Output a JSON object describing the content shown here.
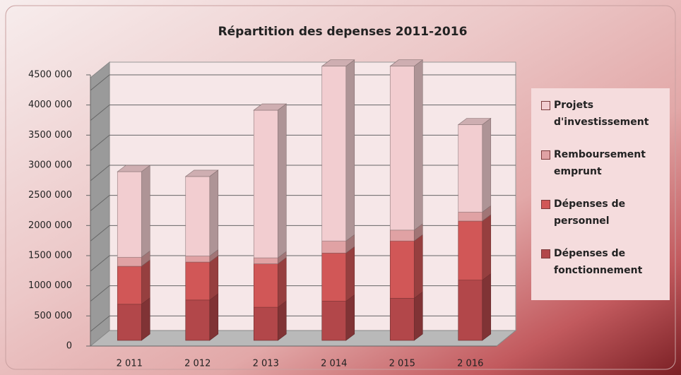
{
  "chart_data": {
    "type": "bar",
    "stacked": true,
    "title": "Répartition des depenses 2011-2016",
    "categories": [
      "2 011",
      "2 012",
      "2 013",
      "2 014",
      "2 015",
      "2 016"
    ],
    "series": [
      {
        "name": "Dépenses de fonctionnement",
        "color": "#b2474a",
        "values": [
          600000,
          670000,
          550000,
          650000,
          700000,
          1000000
        ]
      },
      {
        "name": "Dépenses de personnel",
        "color": "#d15757",
        "values": [
          630000,
          630000,
          720000,
          800000,
          950000,
          980000
        ]
      },
      {
        "name": "Remboursement emprunt",
        "color": "#e0a2a4",
        "values": [
          150000,
          100000,
          100000,
          200000,
          180000,
          150000
        ]
      },
      {
        "name": "Projets d'investissement",
        "color": "#f2cdd0",
        "values": [
          1420000,
          1320000,
          2450000,
          2900000,
          2720000,
          1450000
        ]
      }
    ],
    "ylim": [
      0,
      4500000
    ],
    "yticks": [
      {
        "value": 0,
        "label": "0"
      },
      {
        "value": 500000,
        "label": "500 000"
      },
      {
        "value": 1000000,
        "label": "1000 000"
      },
      {
        "value": 1500000,
        "label": "1500 000"
      },
      {
        "value": 2000000,
        "label": "2000 000"
      },
      {
        "value": 2500000,
        "label": "2500 000"
      },
      {
        "value": 3000000,
        "label": "3000 000"
      },
      {
        "value": 3500000,
        "label": "3500 000"
      },
      {
        "value": 4000000,
        "label": "4000 000"
      },
      {
        "value": 4500000,
        "label": "4500 000"
      }
    ],
    "grid": true,
    "legend": "right"
  }
}
